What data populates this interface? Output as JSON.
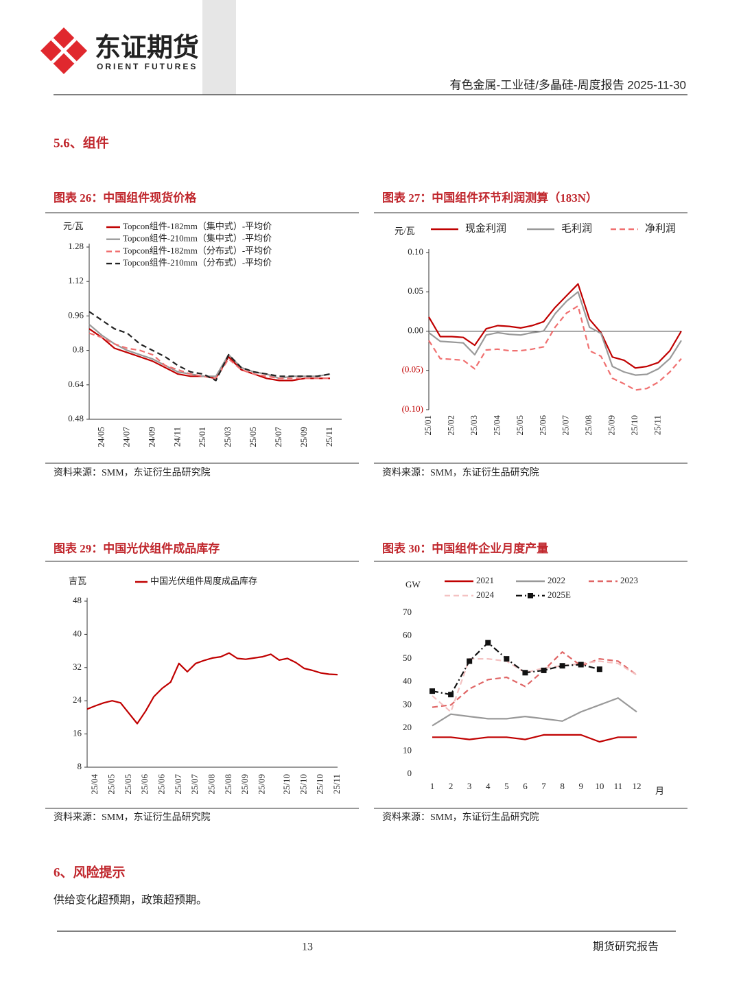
{
  "header": {
    "logo_name": "东证期货",
    "logo_subtitle": "ORIENT FUTURES",
    "report_title": "有色金属-工业硅/多晶硅-周度报告 2025-11-30"
  },
  "section": "5.6、组件",
  "chart_data": [
    {
      "type": "line",
      "title": "图表 26：中国组件现货价格",
      "source": "资料来源：SMM，东证衍生品研究院",
      "y_label": "元/瓦",
      "categories": [
        null,
        "24/05",
        null,
        "24/07",
        null,
        "24/09",
        null,
        "24/11",
        null,
        "25/01",
        null,
        "25/03",
        null,
        "25/05",
        null,
        "25/07",
        null,
        "25/09",
        null,
        "25/11"
      ],
      "series": [
        {
          "name": "Topcon组件-182mm（集中式）-平均价",
          "color": "#c00000",
          "style": "solid",
          "values": [
            0.9,
            0.86,
            0.81,
            0.79,
            0.77,
            0.75,
            0.72,
            0.69,
            0.68,
            0.68,
            0.67,
            0.77,
            0.71,
            0.69,
            0.67,
            0.66,
            0.66,
            0.67,
            0.67,
            0.67
          ]
        },
        {
          "name": "Topcon组件-210mm（集中式）-平均价",
          "color": "#999999",
          "style": "solid",
          "values": [
            0.92,
            0.87,
            0.83,
            0.8,
            0.78,
            0.76,
            0.73,
            0.7,
            0.69,
            0.68,
            0.68,
            0.78,
            0.72,
            0.7,
            0.69,
            0.67,
            0.68,
            0.68,
            0.68,
            0.69
          ]
        },
        {
          "name": "Topcon组件-182mm（分布式）-平均价",
          "color": "#f07070",
          "style": "dashed",
          "values": [
            0.88,
            0.86,
            0.83,
            0.81,
            0.8,
            0.78,
            0.73,
            0.71,
            0.69,
            0.68,
            0.67,
            0.76,
            0.71,
            0.69,
            0.68,
            0.67,
            0.67,
            0.67,
            0.67,
            0.67
          ]
        },
        {
          "name": "Topcon组件-210mm（分布式）-平均价",
          "color": "#222222",
          "style": "dashed",
          "values": [
            0.98,
            0.94,
            0.9,
            0.88,
            0.83,
            0.8,
            0.77,
            0.73,
            0.7,
            0.69,
            0.66,
            0.78,
            0.72,
            0.7,
            0.69,
            0.68,
            0.68,
            0.68,
            0.68,
            0.69
          ]
        }
      ],
      "ylim": [
        0.48,
        1.28
      ],
      "yticks": [
        0.48,
        0.64,
        0.8,
        0.96,
        1.12,
        1.28
      ],
      "rotate_x_labels": true,
      "axes": true
    },
    {
      "type": "line",
      "title": "图表 27：中国组件环节利润测算（183N）",
      "source": "资料来源：SMM，东证衍生品研究院",
      "y_label": "元/瓦",
      "categories": [
        "25/01",
        null,
        "25/02",
        null,
        "25/03",
        null,
        "25/04",
        null,
        "25/05",
        null,
        "25/06",
        null,
        "25/07",
        null,
        "25/08",
        null,
        "25/09",
        null,
        "25/10",
        null,
        "25/11",
        null,
        null
      ],
      "series": [
        {
          "name": "现金利润",
          "color": "#c00000",
          "style": "solid",
          "values": [
            0.018,
            -0.007,
            -0.007,
            -0.008,
            -0.018,
            0.003,
            0.007,
            0.006,
            0.004,
            0.007,
            0.012,
            0.03,
            0.045,
            0.06,
            0.015,
            -0.002,
            -0.033,
            -0.037,
            -0.047,
            -0.045,
            -0.04,
            -0.025,
            0
          ]
        },
        {
          "name": "毛利润",
          "color": "#999999",
          "style": "solid",
          "values": [
            -0.002,
            -0.013,
            -0.014,
            -0.015,
            -0.03,
            -0.005,
            -0.002,
            -0.004,
            -0.005,
            -0.002,
            0,
            0.022,
            0.038,
            0.05,
            0.005,
            -0.003,
            -0.045,
            -0.052,
            -0.056,
            -0.055,
            -0.048,
            -0.035,
            -0.012
          ]
        },
        {
          "name": "净利润",
          "color": "#f07070",
          "style": "dashed",
          "values": [
            -0.012,
            -0.035,
            -0.036,
            -0.037,
            -0.048,
            -0.024,
            -0.023,
            -0.025,
            -0.025,
            -0.023,
            -0.02,
            0.005,
            0.023,
            0.032,
            -0.025,
            -0.032,
            -0.06,
            -0.067,
            -0.075,
            -0.073,
            -0.065,
            -0.052,
            -0.035
          ]
        }
      ],
      "ylim": [
        -0.1,
        0.1
      ],
      "yticks": [
        {
          "value": -0.1,
          "label": "(0.10)"
        },
        {
          "value": -0.05,
          "label": "(0.05)"
        },
        {
          "value": 0,
          "label": "0.00"
        },
        0.05,
        {
          "value": 0.1,
          "label": "0.10"
        }
      ],
      "negative_tick_color": "#c00000",
      "rotate_x_labels": true,
      "axes": true
    },
    {
      "type": "line",
      "title": "图表 29：中国光伏组件成品库存",
      "source": "资料来源：SMM，东证衍生品研究院",
      "y_label": "吉瓦",
      "categories": [
        null,
        "25/04",
        null,
        "25/05",
        null,
        "25/05",
        null,
        "25/06",
        null,
        "25/06",
        null,
        "25/07",
        null,
        "25/07",
        null,
        "25/08",
        null,
        "25/08",
        null,
        "25/09",
        null,
        "25/09",
        null,
        null,
        "25/10",
        null,
        "25/10",
        null,
        "25/10",
        null,
        "25/11"
      ],
      "series": [
        {
          "name": "中国光伏组件周度成品库存",
          "color": "#c00000",
          "style": "solid",
          "values": [
            22.0,
            22.8,
            23.5,
            24.0,
            23.5,
            21.0,
            18.5,
            21.5,
            25.0,
            27.0,
            28.5,
            33.0,
            31.0,
            33.0,
            33.7,
            34.3,
            34.6,
            35.5,
            34.2,
            34.0,
            34.3,
            34.6,
            35.2,
            33.8,
            34.2,
            33.2,
            31.8,
            31.3,
            30.7,
            30.4,
            30.3
          ]
        }
      ],
      "ylim": [
        8,
        48
      ],
      "yticks": [
        8,
        16,
        24,
        32,
        40,
        48
      ],
      "rotate_x_labels": true,
      "axes": true
    },
    {
      "type": "line",
      "title": "图表 30：中国组件企业月度产量",
      "source": "资料来源：SMM，东证衍生品研究院",
      "y_label": "GW",
      "x_label": "月",
      "categories": [
        "1",
        "2",
        "3",
        "4",
        "5",
        "6",
        "7",
        "8",
        "9",
        "10",
        "11",
        "12"
      ],
      "series": [
        {
          "name": "2021",
          "color": "#c00000",
          "style": "solid",
          "values": [
            16,
            16,
            15,
            16,
            16,
            15,
            17,
            17,
            17,
            14,
            16,
            16
          ]
        },
        {
          "name": "2022",
          "color": "#999999",
          "style": "solid",
          "values": [
            21,
            26,
            25,
            24,
            24,
            25,
            24,
            23,
            27,
            30,
            33,
            27
          ]
        },
        {
          "name": "2023",
          "color": "#e06666",
          "style": "dashed",
          "values": [
            29,
            30,
            37,
            41,
            42,
            38,
            45,
            53,
            47,
            50,
            49,
            43
          ]
        },
        {
          "name": "2024",
          "color": "#f4c2c2",
          "style": "dashed",
          "values": [
            34,
            27,
            50,
            50,
            49,
            44,
            46,
            47,
            48,
            49,
            48,
            43
          ]
        },
        {
          "name": "2025E",
          "color": "#111111",
          "style": "dashdot",
          "marker": "square",
          "values": [
            36,
            34.5,
            49,
            57,
            50,
            44,
            45,
            47,
            47.5,
            45.5,
            null,
            null
          ]
        }
      ],
      "ylim": [
        0,
        70
      ],
      "yticks": [
        0,
        10,
        20,
        30,
        40,
        50,
        60,
        70
      ],
      "rotate_x_labels": false,
      "axes": false
    }
  ],
  "risk": {
    "heading": "6、风险提示",
    "text": "供给变化超预期，政策超预期。"
  },
  "footer": {
    "page": 13,
    "label": "期货研究报告"
  }
}
